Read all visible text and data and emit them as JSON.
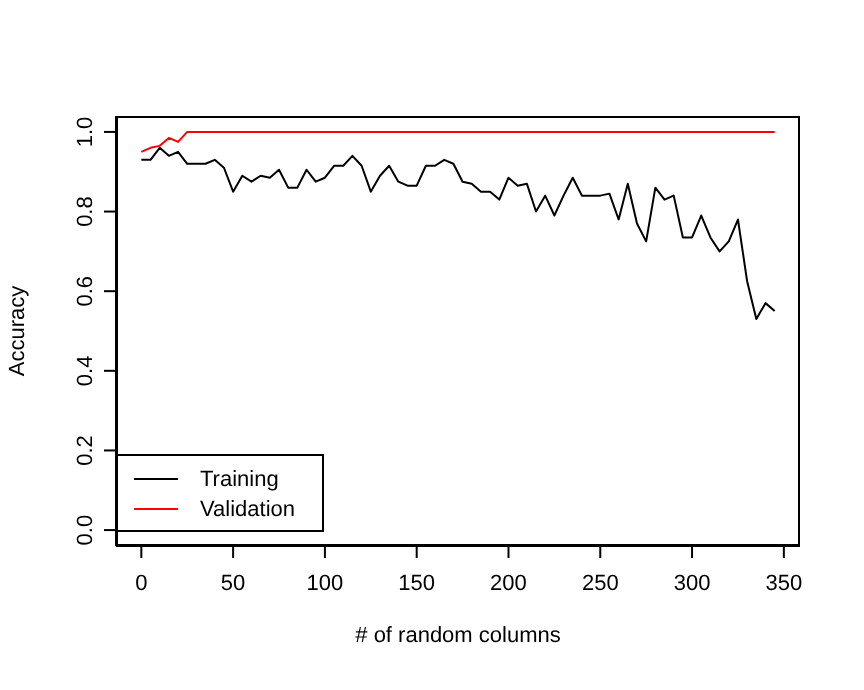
{
  "chart_data": {
    "type": "line",
    "xlabel": "# of random columns",
    "ylabel": "Accuracy",
    "x": [
      0,
      5,
      10,
      15,
      20,
      25,
      30,
      35,
      40,
      45,
      50,
      55,
      60,
      65,
      70,
      75,
      80,
      85,
      90,
      95,
      100,
      105,
      110,
      115,
      120,
      125,
      130,
      135,
      140,
      145,
      150,
      155,
      160,
      165,
      170,
      175,
      180,
      185,
      190,
      195,
      200,
      205,
      210,
      215,
      220,
      225,
      230,
      235,
      240,
      245,
      250,
      255,
      260,
      265,
      270,
      275,
      280,
      285,
      290,
      295,
      300,
      305,
      310,
      315,
      320,
      325,
      330,
      335,
      340,
      345
    ],
    "series": [
      {
        "name": "Training",
        "color": "#000000",
        "values": [
          0.93,
          0.93,
          0.96,
          0.94,
          0.95,
          0.92,
          0.92,
          0.92,
          0.93,
          0.91,
          0.85,
          0.89,
          0.875,
          0.89,
          0.885,
          0.905,
          0.86,
          0.86,
          0.905,
          0.875,
          0.885,
          0.915,
          0.915,
          0.94,
          0.915,
          0.85,
          0.89,
          0.915,
          0.875,
          0.865,
          0.865,
          0.915,
          0.915,
          0.93,
          0.92,
          0.875,
          0.87,
          0.85,
          0.85,
          0.83,
          0.885,
          0.865,
          0.87,
          0.8,
          0.84,
          0.79,
          0.84,
          0.885,
          0.84,
          0.84,
          0.84,
          0.845,
          0.78,
          0.87,
          0.77,
          0.725,
          0.86,
          0.83,
          0.84,
          0.735,
          0.735,
          0.79,
          0.735,
          0.7,
          0.725,
          0.78,
          0.625,
          0.53,
          0.57,
          0.55
        ]
      },
      {
        "name": "Validation",
        "color": "#ff0000",
        "values": [
          0.95,
          0.96,
          0.965,
          0.985,
          0.975,
          1,
          1,
          1,
          1,
          1,
          1,
          1,
          1,
          1,
          1,
          1,
          1,
          1,
          1,
          1,
          1,
          1,
          1,
          1,
          1,
          1,
          1,
          1,
          1,
          1,
          1,
          1,
          1,
          1,
          1,
          1,
          1,
          1,
          1,
          1,
          1,
          1,
          1,
          1,
          1,
          1,
          1,
          1,
          1,
          1,
          1,
          1,
          1,
          1,
          1,
          1,
          1,
          1,
          1,
          1,
          1,
          1,
          1,
          1,
          1,
          1,
          1,
          1,
          1,
          1
        ]
      }
    ],
    "xlim": [
      -13.8,
      358.8
    ],
    "xticks": [
      0,
      50,
      100,
      150,
      200,
      250,
      300,
      350
    ],
    "ylim": [
      -0.04,
      1.04
    ],
    "yticks": [
      {
        "value": 0,
        "label": "0.0"
      },
      {
        "value": 0.2,
        "label": "0.2"
      },
      {
        "value": 0.4,
        "label": "0.4"
      },
      {
        "value": 0.6,
        "label": "0.6"
      },
      {
        "value": 0.8,
        "label": "0.8"
      },
      {
        "value": 1,
        "label": "1.0"
      }
    ],
    "grid": false,
    "legend": "bottom left",
    "marker": "none",
    "line_style": "solid"
  }
}
